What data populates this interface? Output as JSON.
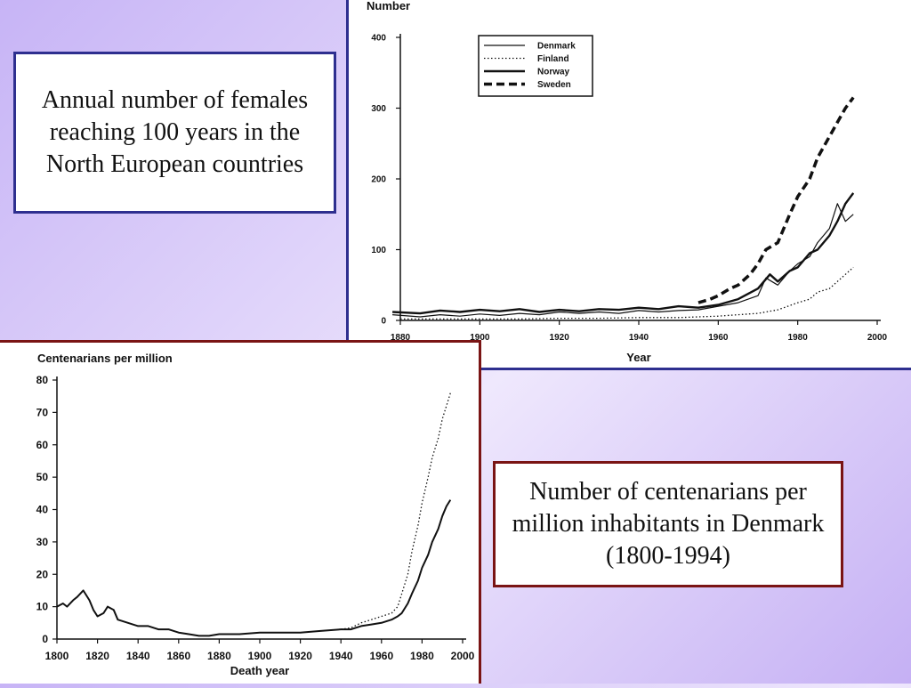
{
  "captions": {
    "top_left": "Annual number of females reaching 100 years in the North European countries",
    "bottom_right": "Number of centenarians per million inhabitants in Denmark (1800-1994)"
  },
  "chart_data": [
    {
      "type": "line",
      "title": "",
      "ylabel": "Number",
      "xlabel": "Year",
      "xlim": [
        1880,
        2000
      ],
      "ylim": [
        0,
        400
      ],
      "xticks": [
        1880,
        1900,
        1920,
        1940,
        1960,
        1980,
        2000
      ],
      "yticks": [
        0,
        100,
        200,
        300,
        400
      ],
      "legend_position": "top-left",
      "colors": {
        "line": "#111111"
      },
      "series": [
        {
          "name": "Denmark",
          "style": "thin",
          "x": [
            1878,
            1885,
            1890,
            1895,
            1900,
            1905,
            1910,
            1915,
            1920,
            1925,
            1930,
            1935,
            1940,
            1945,
            1950,
            1955,
            1960,
            1965,
            1970,
            1972,
            1975,
            1978,
            1980,
            1983,
            1985,
            1988,
            1990,
            1992,
            1994
          ],
          "y": [
            8,
            5,
            8,
            6,
            9,
            7,
            10,
            8,
            12,
            10,
            12,
            10,
            14,
            12,
            14,
            15,
            20,
            25,
            35,
            60,
            50,
            70,
            80,
            90,
            110,
            130,
            165,
            140,
            150
          ]
        },
        {
          "name": "Finland",
          "style": "dotted",
          "x": [
            1880,
            1890,
            1900,
            1910,
            1920,
            1930,
            1940,
            1950,
            1960,
            1965,
            1970,
            1975,
            1980,
            1983,
            1985,
            1988,
            1990,
            1992,
            1994
          ],
          "y": [
            2,
            2,
            2,
            2,
            3,
            3,
            4,
            4,
            6,
            8,
            10,
            15,
            25,
            30,
            40,
            45,
            55,
            65,
            75
          ]
        },
        {
          "name": "Norway",
          "style": "thick",
          "x": [
            1878,
            1885,
            1890,
            1895,
            1900,
            1905,
            1910,
            1915,
            1920,
            1925,
            1930,
            1935,
            1940,
            1945,
            1950,
            1955,
            1960,
            1965,
            1970,
            1973,
            1975,
            1978,
            1980,
            1983,
            1985,
            1988,
            1990,
            1992,
            1994
          ],
          "y": [
            12,
            10,
            14,
            12,
            15,
            13,
            16,
            12,
            15,
            13,
            16,
            15,
            18,
            16,
            20,
            18,
            22,
            30,
            45,
            65,
            55,
            70,
            75,
            95,
            100,
            120,
            140,
            165,
            180
          ]
        },
        {
          "name": "Sweden",
          "style": "dashed",
          "x": [
            1955,
            1958,
            1960,
            1963,
            1965,
            1968,
            1970,
            1972,
            1975,
            1978,
            1980,
            1983,
            1985,
            1988,
            1990,
            1992,
            1994
          ],
          "y": [
            25,
            30,
            35,
            45,
            50,
            65,
            80,
            100,
            110,
            150,
            175,
            200,
            230,
            260,
            280,
            300,
            315
          ]
        }
      ]
    },
    {
      "type": "line",
      "title": "",
      "ylabel": "Centenarians per million",
      "xlabel": "Death year",
      "xlim": [
        1800,
        2000
      ],
      "ylim": [
        0,
        80
      ],
      "xticks": [
        1800,
        1820,
        1840,
        1860,
        1880,
        1900,
        1920,
        1940,
        1960,
        1980,
        2000
      ],
      "yticks": [
        0,
        10,
        20,
        30,
        40,
        50,
        60,
        70,
        80
      ],
      "colors": {
        "line": "#111111"
      },
      "series": [
        {
          "style": "solid",
          "x": [
            1800,
            1803,
            1805,
            1808,
            1810,
            1813,
            1816,
            1818,
            1820,
            1823,
            1825,
            1828,
            1830,
            1835,
            1840,
            1845,
            1850,
            1855,
            1860,
            1865,
            1870,
            1875,
            1880,
            1890,
            1900,
            1910,
            1920,
            1930,
            1940,
            1945,
            1950,
            1955,
            1960,
            1965,
            1968,
            1970,
            1973,
            1975,
            1978,
            1980,
            1983,
            1985,
            1988,
            1990,
            1992,
            1994
          ],
          "y": [
            10,
            11,
            10,
            12,
            13,
            15,
            12,
            9,
            7,
            8,
            10,
            9,
            6,
            5,
            4,
            4,
            3,
            3,
            2,
            1.5,
            1,
            1,
            1.5,
            1.5,
            2,
            2,
            2,
            2.5,
            3,
            3,
            4,
            4.5,
            5,
            6,
            7,
            8,
            11,
            14,
            18,
            22,
            26,
            30,
            34,
            38,
            41,
            43
          ]
        },
        {
          "style": "dotted",
          "x": [
            1940,
            1945,
            1950,
            1955,
            1960,
            1965,
            1968,
            1970,
            1973,
            1975,
            1978,
            1980,
            1983,
            1985,
            1988,
            1990,
            1992,
            1994
          ],
          "y": [
            3,
            3.5,
            5,
            6,
            7,
            8,
            10,
            14,
            20,
            27,
            35,
            42,
            50,
            56,
            62,
            68,
            72,
            76
          ]
        }
      ]
    }
  ]
}
